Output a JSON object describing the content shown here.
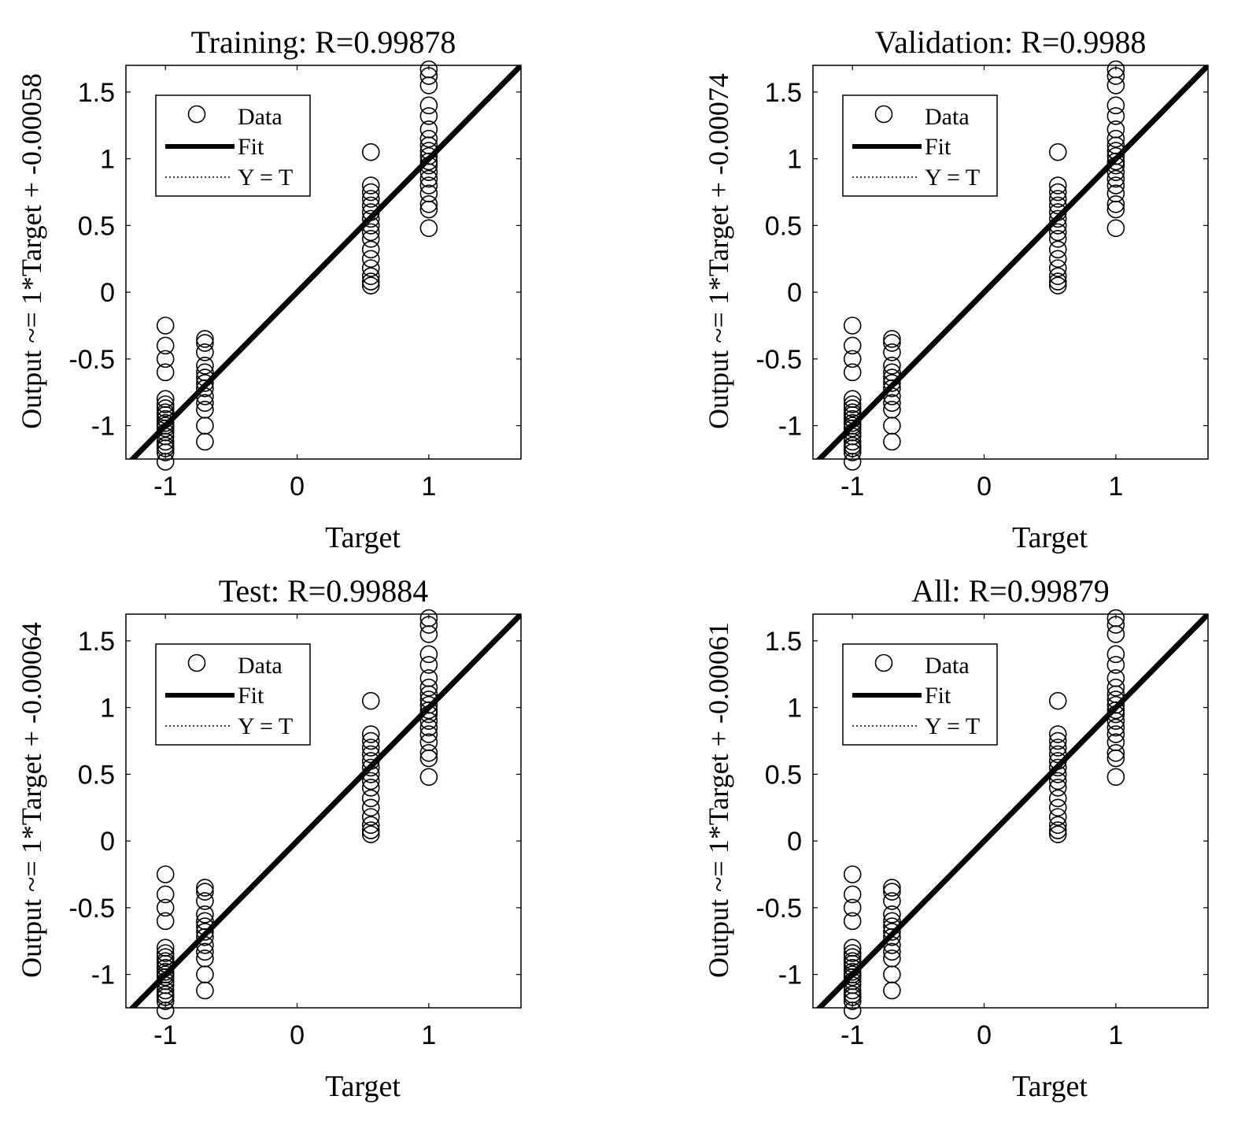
{
  "chart_data": [
    {
      "type": "scatter",
      "title": "Training: R=0.99878",
      "xlabel": "Target",
      "ylabel": "Output ~= 1*Target + -0.00058",
      "xlim": [
        -1.3,
        1.7
      ],
      "ylim": [
        -1.25,
        1.7
      ],
      "xticks": [
        -1,
        0,
        1
      ],
      "xtick_labels": [
        "-1",
        "0",
        "1"
      ],
      "yticks": [
        -1,
        -0.5,
        0,
        0.5,
        1,
        1.5
      ],
      "ytick_labels": [
        "-1",
        "-0.5",
        "0",
        "0.5",
        "1",
        "1.5"
      ],
      "legend": {
        "position": "top-left",
        "entries": [
          "Data",
          "Fit",
          "Y = T"
        ]
      },
      "fit": {
        "slope": 1,
        "intercept": -0.00058
      },
      "series": [
        {
          "name": "Data",
          "x": -1,
          "y": [
            -1.27,
            -1.2,
            -1.17,
            -1.15,
            -1.12,
            -1.08,
            -1.05,
            -1.02,
            -1.0,
            -0.98,
            -0.95,
            -0.92,
            -0.9,
            -0.87,
            -0.84,
            -0.8,
            -0.6,
            -0.5,
            -0.4,
            -0.25
          ]
        },
        {
          "name": "Data",
          "x": -0.7,
          "y": [
            -1.12,
            -1.0,
            -0.88,
            -0.83,
            -0.78,
            -0.72,
            -0.68,
            -0.64,
            -0.6,
            -0.55,
            -0.45,
            -0.38,
            -0.35
          ]
        },
        {
          "name": "Data",
          "x": 0.56,
          "y": [
            0.05,
            0.08,
            0.12,
            0.18,
            0.25,
            0.32,
            0.4,
            0.45,
            0.5,
            0.55,
            0.6,
            0.65,
            0.7,
            0.75,
            0.8,
            1.05
          ]
        },
        {
          "name": "Data",
          "x": 1,
          "y": [
            0.48,
            0.62,
            0.66,
            0.74,
            0.8,
            0.85,
            0.9,
            0.95,
            0.98,
            1.02,
            1.06,
            1.1,
            1.15,
            1.22,
            1.32,
            1.4,
            1.55,
            1.62,
            1.67
          ]
        }
      ]
    },
    {
      "type": "scatter",
      "title": "Validation: R=0.9988",
      "xlabel": "Target",
      "ylabel": "Output ~= 1*Target + -0.00074",
      "xlim": [
        -1.3,
        1.7
      ],
      "ylim": [
        -1.25,
        1.7
      ],
      "xticks": [
        -1,
        0,
        1
      ],
      "xtick_labels": [
        "-1",
        "0",
        "1"
      ],
      "yticks": [
        -1,
        -0.5,
        0,
        0.5,
        1,
        1.5
      ],
      "ytick_labels": [
        "-1",
        "-0.5",
        "0",
        "0.5",
        "1",
        "1.5"
      ],
      "legend": {
        "position": "top-left",
        "entries": [
          "Data",
          "Fit",
          "Y = T"
        ]
      },
      "fit": {
        "slope": 1,
        "intercept": -0.00074
      },
      "series": [
        {
          "name": "Data",
          "x": -1,
          "y": [
            -1.27,
            -1.2,
            -1.17,
            -1.15,
            -1.12,
            -1.08,
            -1.05,
            -1.02,
            -1.0,
            -0.98,
            -0.95,
            -0.92,
            -0.9,
            -0.87,
            -0.84,
            -0.8,
            -0.6,
            -0.5,
            -0.4,
            -0.25
          ]
        },
        {
          "name": "Data",
          "x": -0.7,
          "y": [
            -1.12,
            -1.0,
            -0.88,
            -0.83,
            -0.78,
            -0.72,
            -0.68,
            -0.64,
            -0.6,
            -0.55,
            -0.45,
            -0.38,
            -0.35
          ]
        },
        {
          "name": "Data",
          "x": 0.56,
          "y": [
            0.05,
            0.08,
            0.12,
            0.18,
            0.25,
            0.32,
            0.4,
            0.45,
            0.5,
            0.55,
            0.6,
            0.65,
            0.7,
            0.75,
            0.8,
            1.05
          ]
        },
        {
          "name": "Data",
          "x": 1,
          "y": [
            0.48,
            0.62,
            0.66,
            0.74,
            0.8,
            0.85,
            0.9,
            0.95,
            0.98,
            1.02,
            1.06,
            1.1,
            1.15,
            1.22,
            1.32,
            1.4,
            1.55,
            1.62,
            1.67
          ]
        }
      ]
    },
    {
      "type": "scatter",
      "title": "Test: R=0.99884",
      "xlabel": "Target",
      "ylabel": "Output ~= 1*Target + -0.00064",
      "xlim": [
        -1.3,
        1.7
      ],
      "ylim": [
        -1.25,
        1.7
      ],
      "xticks": [
        -1,
        0,
        1
      ],
      "xtick_labels": [
        "-1",
        "0",
        "1"
      ],
      "yticks": [
        -1,
        -0.5,
        0,
        0.5,
        1,
        1.5
      ],
      "ytick_labels": [
        "-1",
        "-0.5",
        "0",
        "0.5",
        "1",
        "1.5"
      ],
      "legend": {
        "position": "top-left",
        "entries": [
          "Data",
          "Fit",
          "Y = T"
        ]
      },
      "fit": {
        "slope": 1,
        "intercept": -0.00064
      },
      "series": [
        {
          "name": "Data",
          "x": -1,
          "y": [
            -1.27,
            -1.2,
            -1.17,
            -1.15,
            -1.12,
            -1.08,
            -1.05,
            -1.02,
            -1.0,
            -0.98,
            -0.95,
            -0.92,
            -0.9,
            -0.87,
            -0.84,
            -0.8,
            -0.6,
            -0.5,
            -0.4,
            -0.25
          ]
        },
        {
          "name": "Data",
          "x": -0.7,
          "y": [
            -1.12,
            -1.0,
            -0.88,
            -0.83,
            -0.78,
            -0.72,
            -0.68,
            -0.64,
            -0.6,
            -0.55,
            -0.45,
            -0.38,
            -0.35
          ]
        },
        {
          "name": "Data",
          "x": 0.56,
          "y": [
            0.05,
            0.08,
            0.12,
            0.18,
            0.25,
            0.32,
            0.4,
            0.45,
            0.5,
            0.55,
            0.6,
            0.65,
            0.7,
            0.75,
            0.8,
            1.05
          ]
        },
        {
          "name": "Data",
          "x": 1,
          "y": [
            0.48,
            0.62,
            0.66,
            0.74,
            0.8,
            0.85,
            0.9,
            0.95,
            0.98,
            1.02,
            1.06,
            1.1,
            1.15,
            1.22,
            1.32,
            1.4,
            1.55,
            1.62,
            1.67
          ]
        }
      ]
    },
    {
      "type": "scatter",
      "title": "All: R=0.99879",
      "xlabel": "Target",
      "ylabel": "Output ~= 1*Target + -0.00061",
      "xlim": [
        -1.3,
        1.7
      ],
      "ylim": [
        -1.25,
        1.7
      ],
      "xticks": [
        -1,
        0,
        1
      ],
      "xtick_labels": [
        "-1",
        "0",
        "1"
      ],
      "yticks": [
        -1,
        -0.5,
        0,
        0.5,
        1,
        1.5
      ],
      "ytick_labels": [
        "-1",
        "-0.5",
        "0",
        "0.5",
        "1",
        "1.5"
      ],
      "legend": {
        "position": "top-left",
        "entries": [
          "Data",
          "Fit",
          "Y = T"
        ]
      },
      "fit": {
        "slope": 1,
        "intercept": -0.00061
      },
      "series": [
        {
          "name": "Data",
          "x": -1,
          "y": [
            -1.27,
            -1.2,
            -1.17,
            -1.15,
            -1.12,
            -1.08,
            -1.05,
            -1.02,
            -1.0,
            -0.98,
            -0.95,
            -0.92,
            -0.9,
            -0.87,
            -0.84,
            -0.8,
            -0.6,
            -0.5,
            -0.4,
            -0.25
          ]
        },
        {
          "name": "Data",
          "x": -0.7,
          "y": [
            -1.12,
            -1.0,
            -0.88,
            -0.83,
            -0.78,
            -0.72,
            -0.68,
            -0.64,
            -0.6,
            -0.55,
            -0.45,
            -0.38,
            -0.35
          ]
        },
        {
          "name": "Data",
          "x": 0.56,
          "y": [
            0.05,
            0.08,
            0.12,
            0.18,
            0.25,
            0.32,
            0.4,
            0.45,
            0.5,
            0.55,
            0.6,
            0.65,
            0.7,
            0.75,
            0.8,
            1.05
          ]
        },
        {
          "name": "Data",
          "x": 1,
          "y": [
            0.48,
            0.62,
            0.66,
            0.74,
            0.8,
            0.85,
            0.9,
            0.95,
            0.98,
            1.02,
            1.06,
            1.1,
            1.15,
            1.22,
            1.32,
            1.4,
            1.55,
            1.62,
            1.67
          ]
        }
      ]
    }
  ]
}
